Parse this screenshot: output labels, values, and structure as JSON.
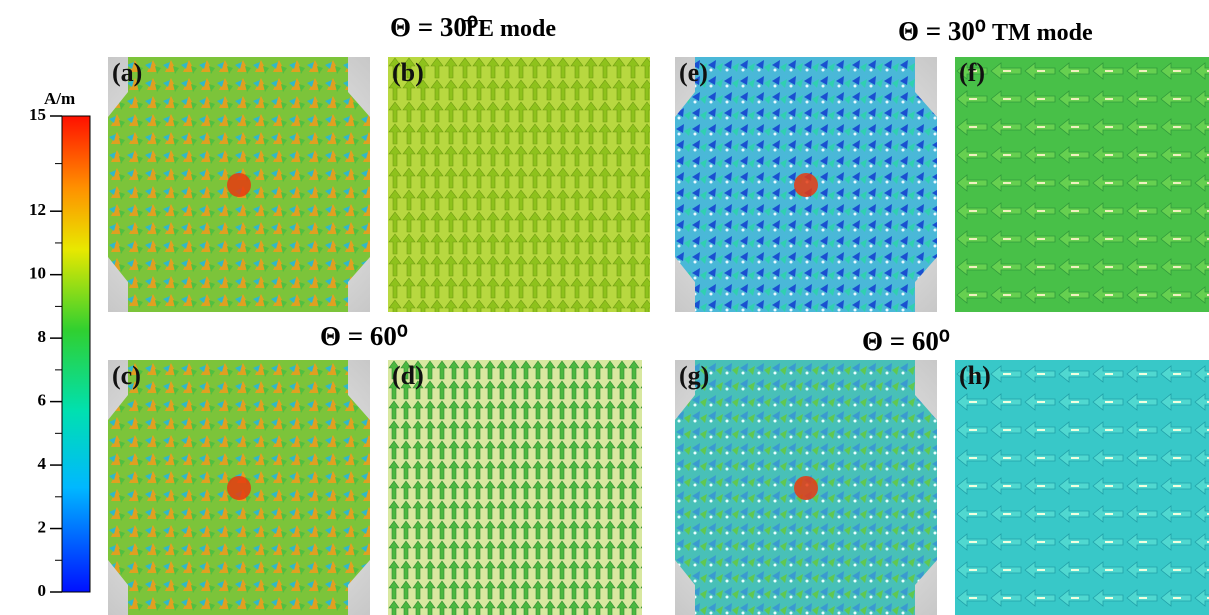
{
  "headings": {
    "top_left": {
      "angle": "Θ = 30⁰",
      "mode": "TE mode"
    },
    "top_right": {
      "angle": "Θ = 30⁰",
      "mode": "TM mode"
    },
    "mid_left": "Θ = 60⁰",
    "mid_right": "Θ = 60⁰"
  },
  "panels": [
    "(a)",
    "(b)",
    "(c)",
    "(d)",
    "(e)",
    "(f)",
    "(g)",
    "(h)"
  ],
  "colorbar": {
    "unit": "A/m",
    "range": [
      0,
      15
    ],
    "ticks": [
      0,
      2,
      4,
      6,
      8,
      10,
      12,
      15
    ]
  }
}
